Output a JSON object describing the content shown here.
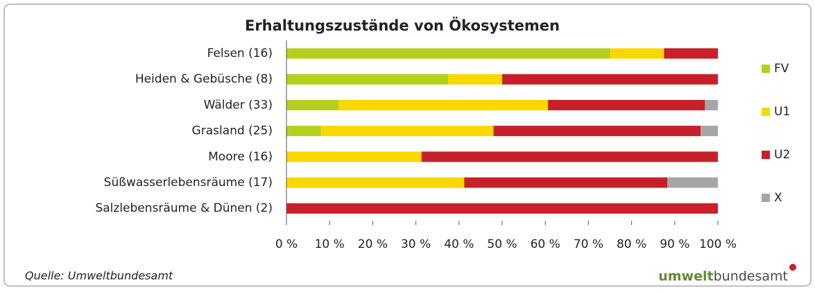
{
  "chart_data": {
    "type": "stacked-bar-horizontal",
    "title": "Erhaltungszustände von Ökosystemen",
    "categories": [
      "Felsen (16)",
      "Heiden & Gebüsche (8)",
      "Wälder (33)",
      "Grasland (25)",
      "Moore (16)",
      "Süßwasserlebensräume (17)",
      "Salzlebensräume & Dünen (2)"
    ],
    "series": [
      {
        "name": "FV",
        "color": "#b5cf1e",
        "values": [
          75,
          37.5,
          12.1,
          8,
          0,
          0,
          0
        ]
      },
      {
        "name": "U1",
        "color": "#f9d800",
        "values": [
          12.5,
          12.5,
          48.5,
          40,
          31.3,
          41.2,
          0
        ]
      },
      {
        "name": "U2",
        "color": "#c8202a",
        "values": [
          12.5,
          50,
          36.4,
          48,
          68.7,
          47.1,
          100
        ]
      },
      {
        "name": "X",
        "color": "#a6a6a6",
        "values": [
          0,
          0,
          3,
          4,
          0,
          11.7,
          0
        ]
      }
    ],
    "xlim": [
      0,
      100
    ],
    "xticks": [
      {
        "value": 0,
        "label": "0 %"
      },
      {
        "value": 10,
        "label": "10 %"
      },
      {
        "value": 20,
        "label": "20 %"
      },
      {
        "value": 30,
        "label": "30 %"
      },
      {
        "value": 40,
        "label": "40 %"
      },
      {
        "value": 50,
        "label": "50 %"
      },
      {
        "value": 60,
        "label": "60 %"
      },
      {
        "value": 70,
        "label": "70 %"
      },
      {
        "value": 80,
        "label": "80 %"
      },
      {
        "value": 90,
        "label": "90 %"
      },
      {
        "value": 100,
        "label": "100 %"
      }
    ],
    "legend": "right"
  },
  "footer": {
    "source": "Quelle: Umweltbundesamt",
    "logo_bold": "umwelt",
    "logo_regular": "bundesamt"
  }
}
